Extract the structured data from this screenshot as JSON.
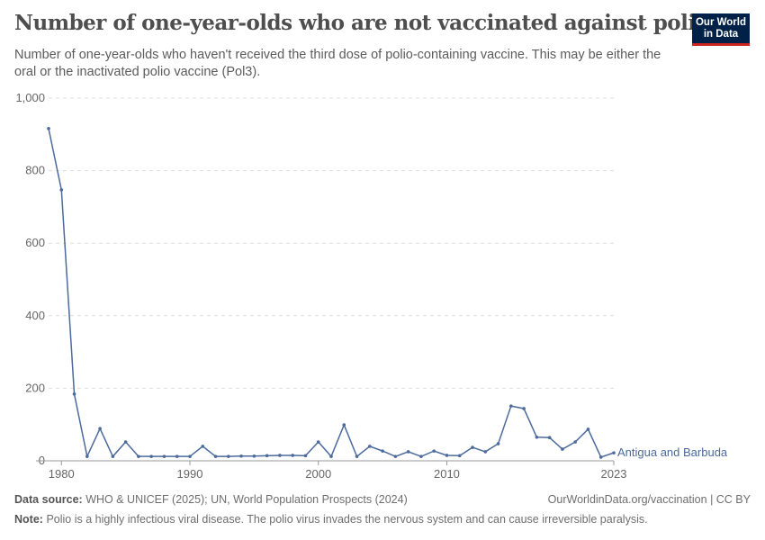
{
  "header": {
    "title": "Number of one-year-olds who are not vaccinated against polio",
    "subtitle": "Number of one-year-olds who haven't received the third dose of polio-containing vaccine. This may be either the oral or the inactivated polio vaccine (Pol3).",
    "logo": "Our World in Data"
  },
  "footer": {
    "source_label": "Data source:",
    "source": "WHO & UNICEF (2025); UN, World Population Prospects (2024)",
    "link": "OurWorldinData.org/vaccination | CC BY",
    "note_label": "Note:",
    "note": "Polio is a highly infectious viral disease. The polio virus invades the nervous system and can cause irreversible paralysis."
  },
  "chart_data": {
    "type": "line",
    "title": "Number of one-year-olds who are not vaccinated against polio",
    "xlim": [
      1979,
      2023
    ],
    "ylim": [
      0,
      1000
    ],
    "x_ticks": [
      "1980",
      "1990",
      "2000",
      "2010",
      "2023"
    ],
    "x_tick_values": [
      1980,
      1990,
      2000,
      2010,
      2023
    ],
    "y_ticks": [
      "0",
      "200",
      "400",
      "600",
      "800",
      "1,000"
    ],
    "y_tick_values": [
      0,
      200,
      400,
      600,
      800,
      1000
    ],
    "grid": "horizontal dashed",
    "colors": {
      "series": "#4c6a9c"
    },
    "series": [
      {
        "name": "Antigua and Barbuda",
        "x": [
          1979,
          1980,
          1981,
          1982,
          1983,
          1984,
          1985,
          1986,
          1987,
          1988,
          1989,
          1990,
          1991,
          1992,
          1993,
          1994,
          1995,
          1996,
          1997,
          1998,
          1999,
          2000,
          2001,
          2002,
          2003,
          2004,
          2005,
          2006,
          2007,
          2008,
          2009,
          2010,
          2011,
          2012,
          2013,
          2014,
          2015,
          2016,
          2017,
          2018,
          2019,
          2020,
          2021,
          2022,
          2023
        ],
        "values": [
          916,
          747,
          184,
          12,
          89,
          12,
          52,
          12,
          12,
          12,
          12,
          12,
          40,
          12,
          12,
          13,
          13,
          14,
          15,
          15,
          14,
          52,
          12,
          99,
          12,
          40,
          27,
          12,
          25,
          12,
          27,
          15,
          14,
          37,
          25,
          47,
          151,
          144,
          65,
          64,
          32,
          52,
          87,
          10,
          22
        ]
      }
    ]
  }
}
